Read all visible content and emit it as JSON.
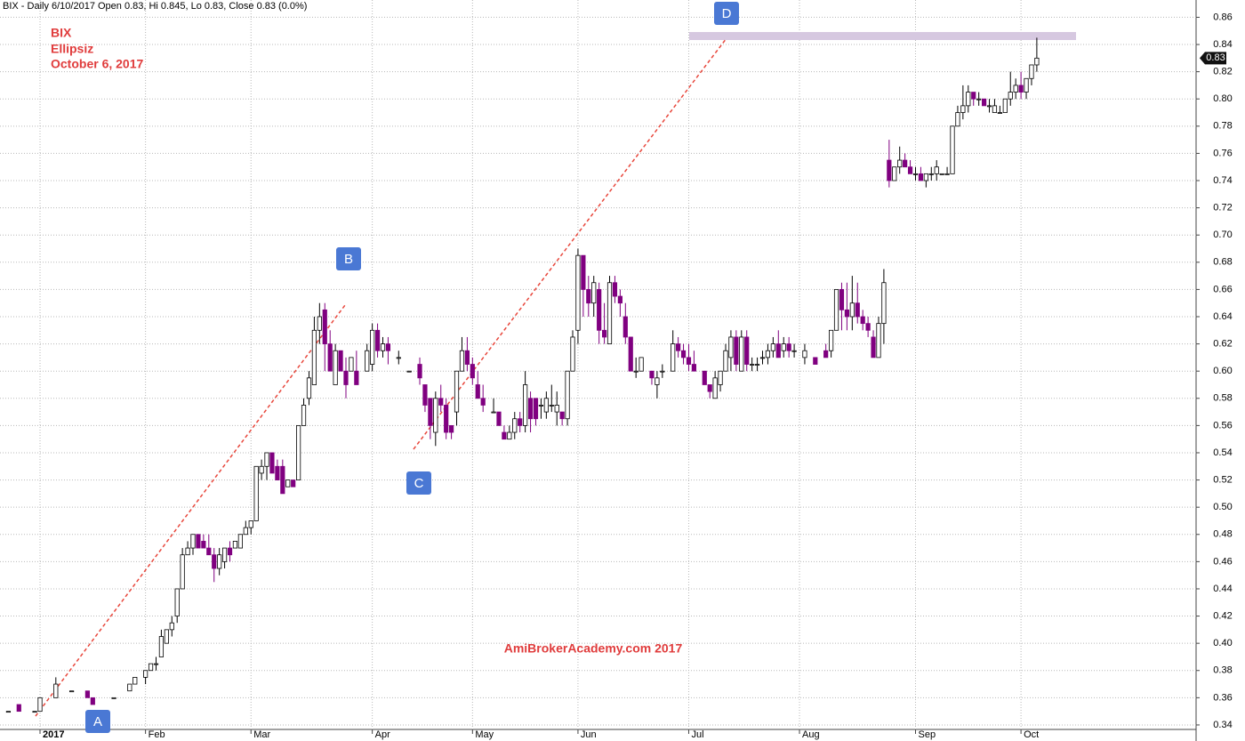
{
  "chart_data": {
    "type": "candlestick",
    "header": "BIX - Daily 6/10/2017 Open 0.83, Hi 0.845, Lo 0.83, Close 0.83 (0.0%)",
    "annotations": [
      "BIX",
      "Ellipsiz",
      "October 6, 2017"
    ],
    "watermark": "AmiBrokerAcademy.com  2017",
    "point_labels": [
      "A",
      "B",
      "C",
      "D"
    ],
    "last_label": {
      "value": 0.83,
      "label": "0.83"
    },
    "up_color": "#ffffff",
    "down_color": "#800080",
    "xlim": [
      -7.59,
      219.2
    ],
    "ylim": [
      0.3282,
      0.8727
    ],
    "grid": true,
    "xticks": [
      {
        "value": 0,
        "label": "2017"
      },
      {
        "value": 20,
        "label": "Feb"
      },
      {
        "value": 40,
        "label": "Mar"
      },
      {
        "value": 63,
        "label": "Apr"
      },
      {
        "value": 82,
        "label": "May"
      },
      {
        "value": 102,
        "label": "Jun"
      },
      {
        "value": 123,
        "label": "Jul"
      },
      {
        "value": 144,
        "label": "Aug"
      },
      {
        "value": 166,
        "label": "Sep"
      },
      {
        "value": 186,
        "label": "Oct"
      }
    ],
    "yticks": [
      0.34,
      0.36,
      0.38,
      {
        "value": 0.4,
        "label": "0.40"
      },
      0.42,
      0.44,
      0.46,
      0.48,
      {
        "value": 0.5,
        "label": "0.50"
      },
      0.52,
      0.54,
      0.56,
      0.58,
      {
        "value": 0.6,
        "label": "0.60"
      },
      0.62,
      0.64,
      0.66,
      0.68,
      {
        "value": 0.7,
        "label": "0.70"
      },
      0.72,
      0.74,
      0.76,
      0.78,
      {
        "value": 0.8,
        "label": "0.80"
      },
      0.82,
      0.84,
      0.86
    ],
    "candles": [
      [
        -6,
        0.35,
        0.35,
        0.35,
        0.35
      ],
      [
        -4,
        0.355,
        0.355,
        0.35,
        0.35
      ],
      [
        -1,
        0.35,
        0.35,
        0.35,
        0.35
      ],
      [
        0,
        0.35,
        0.36,
        0.35,
        0.36
      ],
      [
        3,
        0.36,
        0.375,
        0.36,
        0.37
      ],
      [
        6,
        0.365,
        0.365,
        0.365,
        0.365
      ],
      [
        9,
        0.365,
        0.365,
        0.36,
        0.36
      ],
      [
        10,
        0.36,
        0.36,
        0.355,
        0.355
      ],
      [
        14,
        0.36,
        0.36,
        0.36,
        0.36
      ],
      [
        17,
        0.365,
        0.37,
        0.365,
        0.37
      ],
      [
        18,
        0.37,
        0.375,
        0.37,
        0.375
      ],
      [
        20,
        0.375,
        0.38,
        0.37,
        0.38
      ],
      [
        21,
        0.38,
        0.385,
        0.38,
        0.385
      ],
      [
        22,
        0.385,
        0.39,
        0.38,
        0.385
      ],
      [
        23,
        0.39,
        0.41,
        0.39,
        0.405
      ],
      [
        24,
        0.4,
        0.41,
        0.4,
        0.41
      ],
      [
        25,
        0.41,
        0.42,
        0.405,
        0.415
      ],
      [
        26,
        0.42,
        0.44,
        0.415,
        0.44
      ],
      [
        27,
        0.44,
        0.47,
        0.44,
        0.465
      ],
      [
        28,
        0.465,
        0.475,
        0.465,
        0.47
      ],
      [
        29,
        0.47,
        0.48,
        0.465,
        0.48
      ],
      [
        30,
        0.48,
        0.48,
        0.47,
        0.47
      ],
      [
        31,
        0.475,
        0.48,
        0.47,
        0.47
      ],
      [
        32,
        0.47,
        0.48,
        0.465,
        0.465
      ],
      [
        33,
        0.465,
        0.47,
        0.445,
        0.455
      ],
      [
        34,
        0.455,
        0.47,
        0.45,
        0.465
      ],
      [
        35,
        0.46,
        0.47,
        0.455,
        0.47
      ],
      [
        36,
        0.47,
        0.475,
        0.46,
        0.465
      ],
      [
        37,
        0.47,
        0.475,
        0.47,
        0.475
      ],
      [
        38,
        0.47,
        0.48,
        0.47,
        0.48
      ],
      [
        39,
        0.48,
        0.49,
        0.48,
        0.485
      ],
      [
        40,
        0.485,
        0.49,
        0.48,
        0.49
      ],
      [
        41,
        0.49,
        0.53,
        0.49,
        0.53
      ],
      [
        42,
        0.525,
        0.535,
        0.52,
        0.53
      ],
      [
        43,
        0.53,
        0.54,
        0.52,
        0.54
      ],
      [
        44,
        0.54,
        0.54,
        0.525,
        0.525
      ],
      [
        45,
        0.53,
        0.535,
        0.52,
        0.52
      ],
      [
        46,
        0.53,
        0.535,
        0.51,
        0.51
      ],
      [
        47,
        0.515,
        0.52,
        0.515,
        0.52
      ],
      [
        48,
        0.52,
        0.52,
        0.515,
        0.515
      ],
      [
        49,
        0.52,
        0.56,
        0.52,
        0.56
      ],
      [
        50,
        0.56,
        0.58,
        0.56,
        0.575
      ],
      [
        51,
        0.58,
        0.6,
        0.575,
        0.595
      ],
      [
        52,
        0.59,
        0.64,
        0.59,
        0.63
      ],
      [
        53,
        0.63,
        0.65,
        0.62,
        0.64
      ],
      [
        54,
        0.645,
        0.65,
        0.6,
        0.62
      ],
      [
        55,
        0.62,
        0.63,
        0.6,
        0.6
      ],
      [
        56,
        0.59,
        0.62,
        0.59,
        0.615
      ],
      [
        57,
        0.615,
        0.615,
        0.6,
        0.6
      ],
      [
        58,
        0.6,
        0.61,
        0.58,
        0.59
      ],
      [
        59,
        0.6,
        0.61,
        0.6,
        0.61
      ],
      [
        60,
        0.6,
        0.615,
        0.59,
        0.59
      ],
      [
        62,
        0.6,
        0.62,
        0.6,
        0.615
      ],
      [
        63,
        0.605,
        0.635,
        0.6,
        0.63
      ],
      [
        64,
        0.63,
        0.635,
        0.61,
        0.615
      ],
      [
        65,
        0.615,
        0.625,
        0.61,
        0.62
      ],
      [
        66,
        0.62,
        0.625,
        0.605,
        0.615
      ],
      [
        68,
        0.61,
        0.615,
        0.605,
        0.61
      ],
      [
        70,
        0.6,
        0.6,
        0.6,
        0.6
      ],
      [
        72,
        0.605,
        0.61,
        0.59,
        0.595
      ],
      [
        73,
        0.59,
        0.59,
        0.57,
        0.575
      ],
      [
        74,
        0.58,
        0.58,
        0.55,
        0.56
      ],
      [
        75,
        0.555,
        0.585,
        0.545,
        0.58
      ],
      [
        76,
        0.58,
        0.59,
        0.57,
        0.575
      ],
      [
        77,
        0.575,
        0.58,
        0.55,
        0.555
      ],
      [
        78,
        0.56,
        0.56,
        0.55,
        0.555
      ],
      [
        79,
        0.57,
        0.6,
        0.56,
        0.6
      ],
      [
        80,
        0.6,
        0.625,
        0.6,
        0.615
      ],
      [
        81,
        0.615,
        0.625,
        0.6,
        0.605
      ],
      [
        82,
        0.605,
        0.61,
        0.59,
        0.595
      ],
      [
        83,
        0.59,
        0.6,
        0.58,
        0.58
      ],
      [
        84,
        0.58,
        0.59,
        0.57,
        0.575
      ],
      [
        86,
        0.57,
        0.58,
        0.57,
        0.57
      ],
      [
        87,
        0.57,
        0.57,
        0.56,
        0.56
      ],
      [
        88,
        0.555,
        0.56,
        0.55,
        0.55
      ],
      [
        89,
        0.55,
        0.56,
        0.55,
        0.555
      ],
      [
        90,
        0.555,
        0.57,
        0.55,
        0.565
      ],
      [
        91,
        0.565,
        0.57,
        0.555,
        0.56
      ],
      [
        92,
        0.56,
        0.6,
        0.555,
        0.59
      ],
      [
        93,
        0.58,
        0.585,
        0.555,
        0.565
      ],
      [
        94,
        0.58,
        0.58,
        0.56,
        0.565
      ],
      [
        95,
        0.575,
        0.58,
        0.565,
        0.575
      ],
      [
        96,
        0.57,
        0.585,
        0.565,
        0.58
      ],
      [
        97,
        0.575,
        0.59,
        0.57,
        0.575
      ],
      [
        98,
        0.57,
        0.585,
        0.56,
        0.575
      ],
      [
        99,
        0.57,
        0.57,
        0.56,
        0.565
      ],
      [
        100,
        0.565,
        0.6,
        0.56,
        0.6
      ],
      [
        101,
        0.6,
        0.63,
        0.6,
        0.625
      ],
      [
        102,
        0.63,
        0.69,
        0.62,
        0.685
      ],
      [
        103,
        0.685,
        0.685,
        0.64,
        0.66
      ],
      [
        104,
        0.66,
        0.67,
        0.64,
        0.65
      ],
      [
        105,
        0.65,
        0.67,
        0.64,
        0.665
      ],
      [
        106,
        0.66,
        0.665,
        0.62,
        0.63
      ],
      [
        107,
        0.63,
        0.65,
        0.62,
        0.625
      ],
      [
        108,
        0.62,
        0.67,
        0.62,
        0.665
      ],
      [
        109,
        0.665,
        0.67,
        0.65,
        0.655
      ],
      [
        110,
        0.655,
        0.66,
        0.64,
        0.65
      ],
      [
        111,
        0.64,
        0.65,
        0.62,
        0.625
      ],
      [
        112,
        0.625,
        0.625,
        0.6,
        0.6
      ],
      [
        113,
        0.6,
        0.61,
        0.595,
        0.6
      ],
      [
        114,
        0.6,
        0.61,
        0.6,
        0.61
      ],
      [
        116,
        0.6,
        0.6,
        0.59,
        0.595
      ],
      [
        117,
        0.59,
        0.6,
        0.58,
        0.595
      ],
      [
        118,
        0.6,
        0.605,
        0.595,
        0.6
      ],
      [
        120,
        0.6,
        0.63,
        0.6,
        0.62
      ],
      [
        121,
        0.62,
        0.625,
        0.61,
        0.615
      ],
      [
        122,
        0.615,
        0.62,
        0.605,
        0.61
      ],
      [
        123,
        0.61,
        0.62,
        0.6,
        0.605
      ],
      [
        124,
        0.605,
        0.615,
        0.6,
        0.6
      ],
      [
        126,
        0.6,
        0.6,
        0.59,
        0.59
      ],
      [
        127,
        0.59,
        0.59,
        0.58,
        0.585
      ],
      [
        128,
        0.58,
        0.6,
        0.58,
        0.595
      ],
      [
        129,
        0.59,
        0.6,
        0.585,
        0.6
      ],
      [
        130,
        0.6,
        0.62,
        0.6,
        0.615
      ],
      [
        131,
        0.61,
        0.63,
        0.6,
        0.625
      ],
      [
        132,
        0.625,
        0.63,
        0.6,
        0.605
      ],
      [
        133,
        0.6,
        0.63,
        0.6,
        0.625
      ],
      [
        134,
        0.625,
        0.63,
        0.6,
        0.605
      ],
      [
        135,
        0.605,
        0.61,
        0.6,
        0.605
      ],
      [
        136,
        0.605,
        0.61,
        0.6,
        0.605
      ],
      [
        137,
        0.61,
        0.615,
        0.605,
        0.61
      ],
      [
        138,
        0.61,
        0.62,
        0.605,
        0.615
      ],
      [
        139,
        0.615,
        0.625,
        0.61,
        0.62
      ],
      [
        140,
        0.62,
        0.63,
        0.61,
        0.61
      ],
      [
        141,
        0.615,
        0.625,
        0.61,
        0.62
      ],
      [
        142,
        0.62,
        0.625,
        0.61,
        0.615
      ],
      [
        143,
        0.615,
        0.62,
        0.61,
        0.615
      ],
      [
        145,
        0.61,
        0.62,
        0.605,
        0.615
      ],
      [
        147,
        0.61,
        0.61,
        0.605,
        0.605
      ],
      [
        149,
        0.615,
        0.62,
        0.61,
        0.61
      ],
      [
        150,
        0.615,
        0.63,
        0.61,
        0.63
      ],
      [
        151,
        0.63,
        0.66,
        0.63,
        0.66
      ],
      [
        152,
        0.66,
        0.665,
        0.63,
        0.645
      ],
      [
        153,
        0.645,
        0.665,
        0.63,
        0.64
      ],
      [
        154,
        0.64,
        0.67,
        0.63,
        0.65
      ],
      [
        155,
        0.65,
        0.665,
        0.635,
        0.64
      ],
      [
        156,
        0.64,
        0.645,
        0.63,
        0.635
      ],
      [
        157,
        0.635,
        0.64,
        0.625,
        0.63
      ],
      [
        158,
        0.625,
        0.63,
        0.61,
        0.61
      ],
      [
        159,
        0.61,
        0.64,
        0.61,
        0.635
      ],
      [
        160,
        0.635,
        0.675,
        0.62,
        0.665
      ],
      [
        161,
        0.755,
        0.77,
        0.735,
        0.74
      ],
      [
        162,
        0.74,
        0.75,
        0.74,
        0.75
      ],
      [
        163,
        0.75,
        0.765,
        0.745,
        0.755
      ],
      [
        164,
        0.755,
        0.76,
        0.75,
        0.75
      ],
      [
        165,
        0.75,
        0.755,
        0.745,
        0.745
      ],
      [
        166,
        0.745,
        0.75,
        0.74,
        0.745
      ],
      [
        167,
        0.745,
        0.75,
        0.74,
        0.74
      ],
      [
        168,
        0.74,
        0.745,
        0.735,
        0.745
      ],
      [
        169,
        0.745,
        0.75,
        0.74,
        0.745
      ],
      [
        170,
        0.745,
        0.755,
        0.74,
        0.75
      ],
      [
        171,
        0.745,
        0.745,
        0.745,
        0.745
      ],
      [
        172,
        0.745,
        0.75,
        0.745,
        0.745
      ],
      [
        173,
        0.745,
        0.78,
        0.745,
        0.78
      ],
      [
        174,
        0.78,
        0.795,
        0.78,
        0.79
      ],
      [
        175,
        0.79,
        0.81,
        0.785,
        0.795
      ],
      [
        176,
        0.795,
        0.81,
        0.79,
        0.805
      ],
      [
        177,
        0.805,
        0.805,
        0.795,
        0.8
      ],
      [
        178,
        0.8,
        0.805,
        0.795,
        0.8
      ],
      [
        179,
        0.8,
        0.8,
        0.795,
        0.795
      ],
      [
        180,
        0.795,
        0.8,
        0.79,
        0.795
      ],
      [
        181,
        0.79,
        0.8,
        0.79,
        0.795
      ],
      [
        182,
        0.79,
        0.795,
        0.79,
        0.79
      ],
      [
        183,
        0.79,
        0.8,
        0.79,
        0.8
      ],
      [
        184,
        0.8,
        0.82,
        0.795,
        0.805
      ],
      [
        185,
        0.805,
        0.815,
        0.8,
        0.81
      ],
      [
        186,
        0.81,
        0.82,
        0.8,
        0.805
      ],
      [
        187,
        0.805,
        0.815,
        0.8,
        0.815
      ],
      [
        188,
        0.815,
        0.825,
        0.81,
        0.825
      ],
      [
        189,
        0.825,
        0.845,
        0.82,
        0.83
      ]
    ]
  }
}
